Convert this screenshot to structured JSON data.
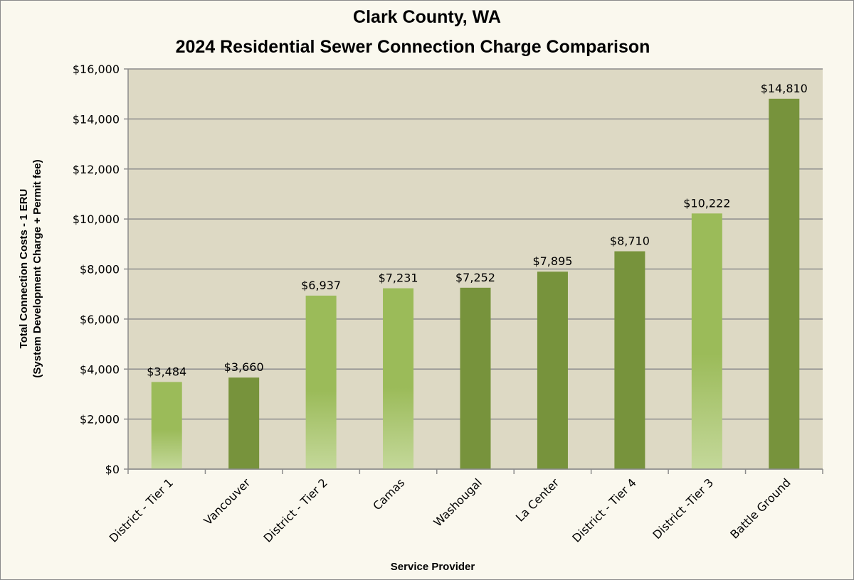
{
  "chart_data": {
    "type": "bar",
    "title": [
      "Clark County, WA",
      "2024 Residential Sewer Connection Charge Comparison"
    ],
    "xlabel": "Service Provider",
    "ylabel": [
      "Total Connection Costs - 1 ERU",
      "(System Development Charge + Permit fee)"
    ],
    "categories": [
      "District - Tier 1",
      "Vancouver",
      "District - Tier 2",
      "Camas",
      "Washougal",
      "La Center",
      "District - Tier 4",
      "District -Tier 3",
      "Battle Ground"
    ],
    "values": [
      3484,
      3660,
      6937,
      7231,
      7252,
      7895,
      8710,
      10222,
      14810
    ],
    "data_labels": [
      "$3,484",
      "$3,660",
      "$6,937",
      "$7,231",
      "$7,252",
      "$7,895",
      "$8,710",
      "$10,222",
      "$14,810"
    ],
    "bar_style": [
      "light",
      "dark",
      "light",
      "light",
      "dark",
      "dark",
      "dark",
      "light",
      "dark"
    ],
    "ylim": [
      0,
      16000
    ],
    "yticks": [
      "$0",
      "$2,000",
      "$4,000",
      "$6,000",
      "$8,000",
      "$10,000",
      "$12,000",
      "$14,000",
      "$16,000"
    ],
    "grid": true,
    "legend": "none",
    "colors": {
      "dark": "#77933c",
      "light_top": "#9bbb59",
      "light_bottom": "#c4d89a",
      "plot_bg": "#ddd9c4",
      "page_bg": "#faf8ee"
    }
  }
}
